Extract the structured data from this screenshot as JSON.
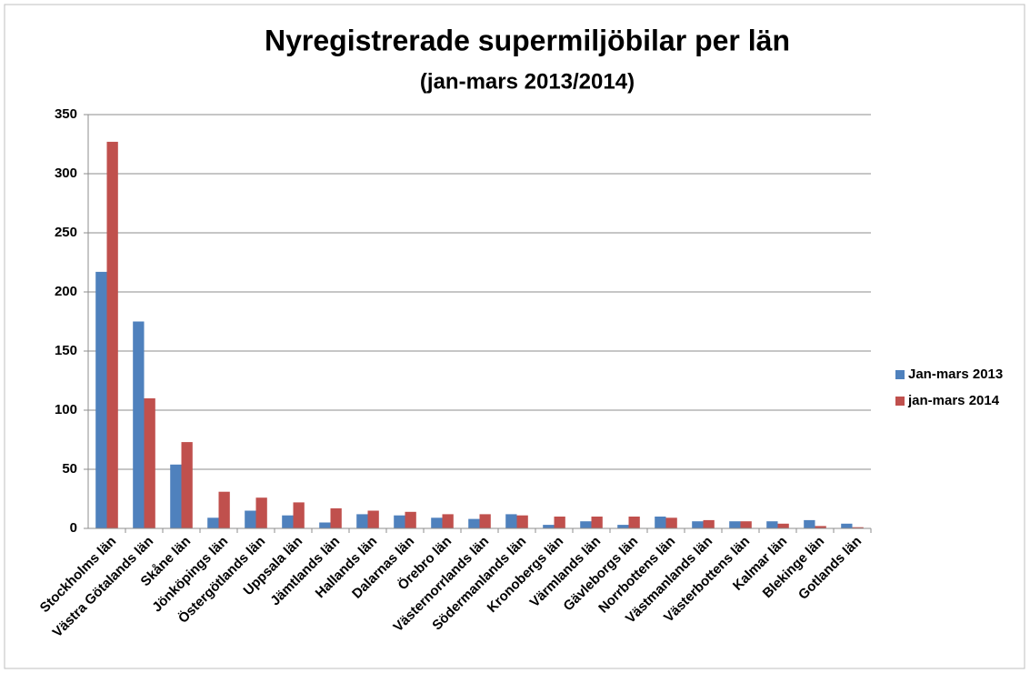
{
  "chart_data": {
    "type": "bar",
    "title": "Nyregistrerade supermiljöbilar per län",
    "subtitle": "(jan-mars 2013/2014)",
    "categories": [
      "Stockholms län",
      "Västra Götalands län",
      "Skåne län",
      "Jönköpings län",
      "Östergötlands län",
      "Uppsala län",
      "Jämtlands län",
      "Hallands län",
      "Dalarnas län",
      "Örebro län",
      "Västernorrlands län",
      "Södermanlands län",
      "Kronobergs län",
      "Värmlands län",
      "Gävleborgs län",
      "Norrbottens län",
      "Västmanlands län",
      "Västerbottens län",
      "Kalmar län",
      "Blekinge län",
      "Gotlands län"
    ],
    "series": [
      {
        "name": "Jan-mars 2013",
        "color": "#4f81bd",
        "values": [
          217,
          175,
          54,
          9,
          15,
          11,
          5,
          12,
          11,
          9,
          8,
          12,
          3,
          6,
          3,
          10,
          6,
          6,
          6,
          7,
          4
        ]
      },
      {
        "name": "jan-mars 2014",
        "color": "#c0504d",
        "values": [
          327,
          110,
          73,
          31,
          26,
          22,
          17,
          15,
          14,
          12,
          12,
          11,
          10,
          10,
          10,
          9,
          7,
          6,
          4,
          2,
          1
        ]
      }
    ],
    "ylim": [
      0,
      350
    ],
    "yticks": [
      0,
      50,
      100,
      150,
      200,
      250,
      300,
      350
    ],
    "grid": true,
    "legend": "right"
  }
}
